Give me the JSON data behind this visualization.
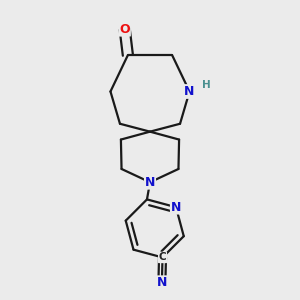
{
  "bg_color": "#ebebeb",
  "bond_color": "#1a1a1a",
  "bond_width": 1.6,
  "atom_colors": {
    "O": "#ee1111",
    "N_blue": "#1111cc",
    "N_teal": "#4a9090",
    "C": "#222222"
  },
  "xlim": [
    0.18,
    0.82
  ],
  "ylim": [
    0.03,
    0.97
  ]
}
